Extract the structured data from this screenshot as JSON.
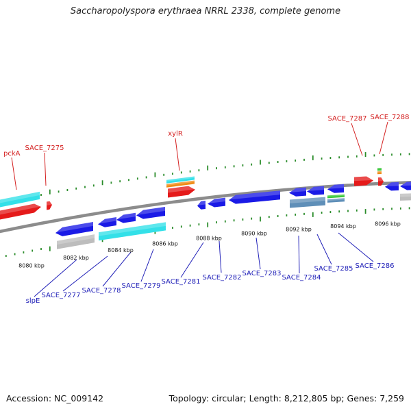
{
  "title": "Saccharopolyspora erythraea NRRL 2338, complete genome",
  "footer": {
    "accession": "Accession: NC_009142",
    "topology": "Topology: circular; Length: 8,212,805 bp; Genes: 7,259"
  },
  "colors": {
    "backbone": "#8c8c8c",
    "forward_gene": "#e51a1a",
    "reverse_gene": "#1a1ae6",
    "cds_cyan": "#33e0e8",
    "cds_gray": "#bdbdbd",
    "cds_steel": "#5f8fb8",
    "cds_orange": "#f08c18",
    "cds_green": "#3cc83c",
    "tick": "#2a8c2a",
    "forward_label": "#d42020",
    "reverse_label": "#2020b8"
  },
  "scale_labels": [
    "8080 kbp",
    "8082 kbp",
    "8084 kbp",
    "8086 kbp",
    "8088 kbp",
    "8090 kbp",
    "8092 kbp",
    "8094 kbp",
    "8096 kbp"
  ],
  "forward_labels": [
    "pckA",
    "SACE_7275",
    "xylR",
    "SACE_7287",
    "SACE_7288"
  ],
  "reverse_labels": [
    "slpE",
    "SACE_7277",
    "SACE_7278",
    "SACE_7279",
    "SACE_7281",
    "SACE_7282",
    "SACE_7283",
    "SACE_7284",
    "SACE_7285",
    "SACE_7286"
  ]
}
